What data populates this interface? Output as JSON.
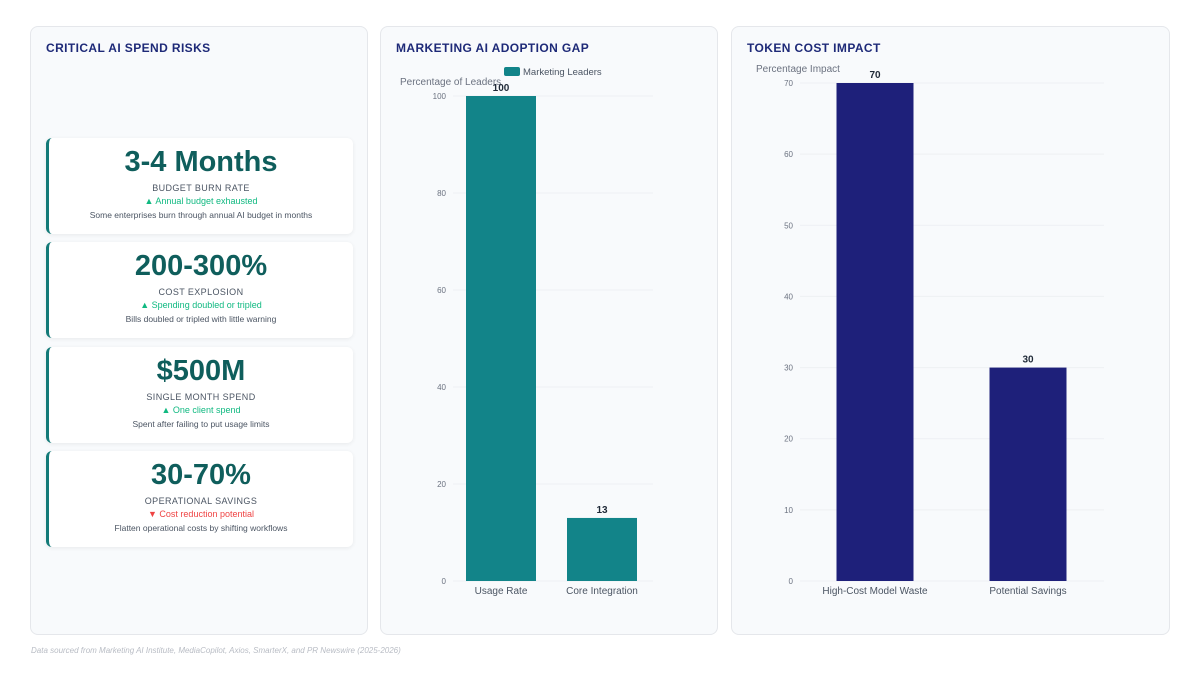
{
  "panels": {
    "risks": {
      "title": "CRITICAL AI SPEND RISKS",
      "kpis": [
        {
          "value": "3-4 Months",
          "label": "BUDGET BURN RATE",
          "trend": "▲ Annual budget exhausted",
          "trend_dir": "up",
          "desc": "Some enterprises burn through annual AI budget in months"
        },
        {
          "value": "200-300%",
          "label": "COST EXPLOSION",
          "trend": "▲ Spending doubled or tripled",
          "trend_dir": "up",
          "desc": "Bills doubled or tripled with little warning"
        },
        {
          "value": "$500M",
          "label": "SINGLE MONTH SPEND",
          "trend": "▲ One client spend",
          "trend_dir": "up",
          "desc": "Spent after failing to put usage limits"
        },
        {
          "value": "30-70%",
          "label": "OPERATIONAL SAVINGS",
          "trend": "▼ Cost reduction potential",
          "trend_dir": "down",
          "desc": "Flatten operational costs by shifting workflows"
        }
      ]
    },
    "adoption": {
      "title": "MARKETING AI ADOPTION GAP"
    },
    "token": {
      "title": "TOKEN COST IMPACT"
    }
  },
  "chart_data": [
    {
      "type": "bar",
      "title": "MARKETING AI ADOPTION GAP",
      "categories": [
        "Usage Rate",
        "Core Integration"
      ],
      "series": [
        {
          "name": "Marketing Leaders",
          "values": [
            100,
            13
          ]
        }
      ],
      "ylabel": "Percentage of Leaders",
      "ylim": [
        0,
        100
      ],
      "yticks": [
        0,
        20,
        40,
        60,
        80,
        100
      ],
      "legend": "top",
      "color": "#128489",
      "data_labels": true
    },
    {
      "type": "bar",
      "title": "TOKEN COST IMPACT",
      "categories": [
        "High-Cost Model Waste",
        "Potential Savings"
      ],
      "series": [
        {
          "values": [
            70,
            30
          ]
        }
      ],
      "ylabel": "Percentage Impact",
      "ylim": [
        0,
        70
      ],
      "yticks": [
        0,
        10,
        20,
        30,
        40,
        50,
        60,
        70
      ],
      "legend": "none",
      "color": "#1e207a",
      "data_labels": true
    }
  ],
  "footer": "Data sourced from Marketing AI Institute, MediaCopilot, Axios, SmarterX, and PR Newswire (2025-2026)"
}
